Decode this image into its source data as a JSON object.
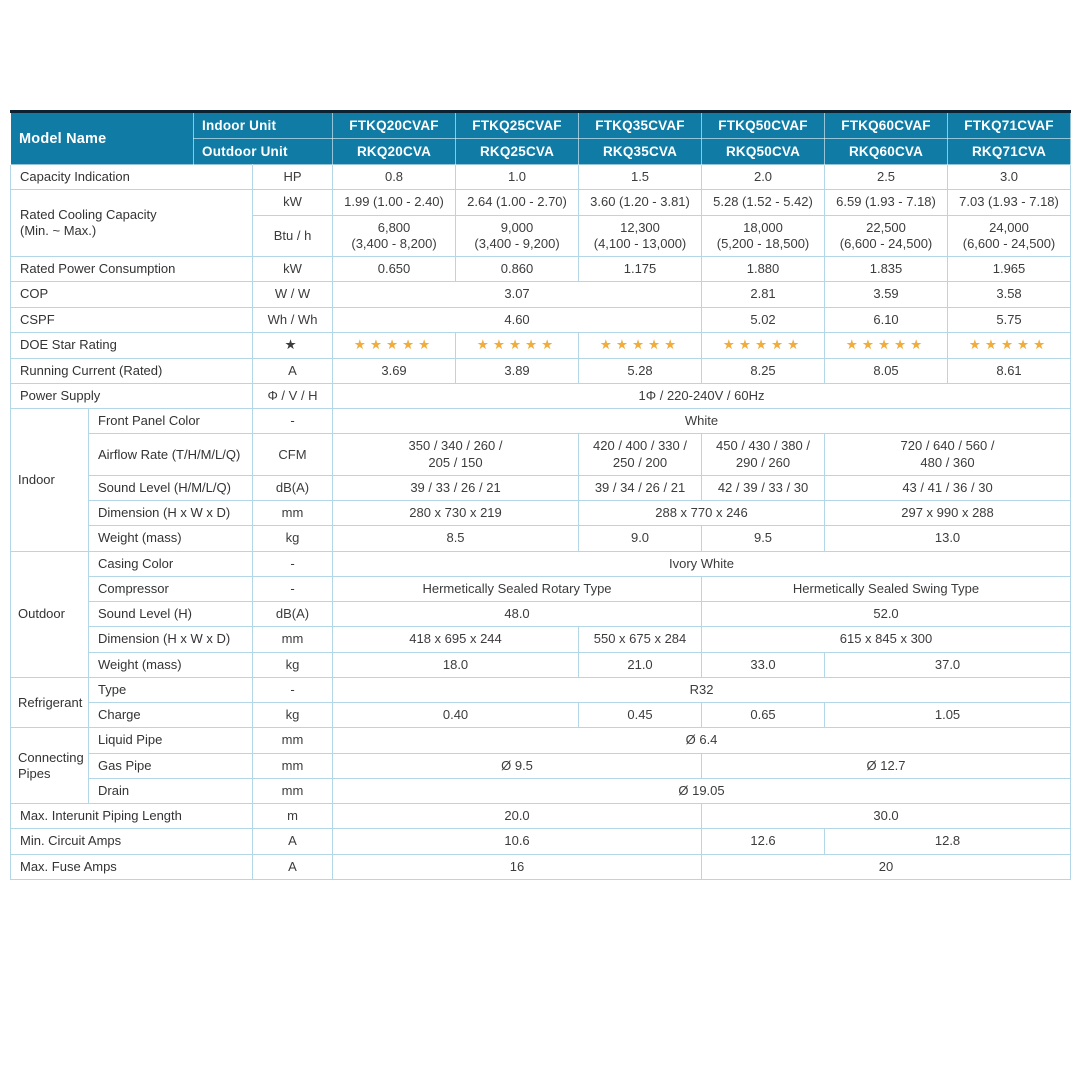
{
  "table": {
    "star_symbol": "★",
    "colors": {
      "header_bg": "#107ca6",
      "border": "#b3d7e6",
      "star": "#f0ad3d",
      "top_rule": "#0d2230"
    },
    "header": {
      "model_name": "Model Name",
      "indoor_label": "Indoor Unit",
      "outdoor_label": "Outdoor Unit",
      "indoor_models": [
        "FTKQ20CVAF",
        "FTKQ25CVAF",
        "FTKQ35CVAF",
        "FTKQ50CVAF",
        "FTKQ60CVAF",
        "FTKQ71CVAF"
      ],
      "outdoor_models": [
        "RKQ20CVA",
        "RKQ25CVA",
        "RKQ35CVA",
        "RKQ50CVA",
        "RKQ60CVA",
        "RKQ71CVA"
      ]
    },
    "rows": [
      {
        "label": "Capacity Indication",
        "unit": "HP",
        "cells": [
          {
            "t": "0.8",
            "s": 1
          },
          {
            "t": "1.0",
            "s": 1
          },
          {
            "t": "1.5",
            "s": 1
          },
          {
            "t": "2.0",
            "s": 1
          },
          {
            "t": "2.5",
            "s": 1
          },
          {
            "t": "3.0",
            "s": 1
          }
        ]
      },
      {
        "label": "Rated Cooling Capacity\n(Min. ~ Max.)",
        "label_rowspan": 2,
        "unit": "kW",
        "cells": [
          {
            "t": "1.99 (1.00 - 2.40)",
            "s": 1
          },
          {
            "t": "2.64 (1.00 - 2.70)",
            "s": 1
          },
          {
            "t": "3.60 (1.20 - 3.81)",
            "s": 1
          },
          {
            "t": "5.28 (1.52 - 5.42)",
            "s": 1
          },
          {
            "t": "6.59 (1.93 - 7.18)",
            "s": 1
          },
          {
            "t": "7.03 (1.93 - 7.18)",
            "s": 1
          }
        ]
      },
      {
        "skip_label": true,
        "unit": "Btu / h",
        "cells": [
          {
            "t": "6,800\n(3,400 - 8,200)",
            "s": 1
          },
          {
            "t": "9,000\n(3,400 - 9,200)",
            "s": 1
          },
          {
            "t": "12,300\n(4,100 - 13,000)",
            "s": 1
          },
          {
            "t": "18,000\n(5,200 - 18,500)",
            "s": 1
          },
          {
            "t": "22,500\n(6,600 - 24,500)",
            "s": 1
          },
          {
            "t": "24,000\n(6,600 - 24,500)",
            "s": 1
          }
        ]
      },
      {
        "label": "Rated Power Consumption",
        "unit": "kW",
        "cells": [
          {
            "t": "0.650",
            "s": 1
          },
          {
            "t": "0.860",
            "s": 1
          },
          {
            "t": "1.175",
            "s": 1
          },
          {
            "t": "1.880",
            "s": 1
          },
          {
            "t": "1.835",
            "s": 1
          },
          {
            "t": "1.965",
            "s": 1
          }
        ]
      },
      {
        "label": "COP",
        "unit": "W / W",
        "cells": [
          {
            "t": "3.07",
            "s": 3
          },
          {
            "t": "2.81",
            "s": 1
          },
          {
            "t": "3.59",
            "s": 1
          },
          {
            "t": "3.58",
            "s": 1
          }
        ]
      },
      {
        "label": "CSPF",
        "unit": "Wh / Wh",
        "cells": [
          {
            "t": "4.60",
            "s": 3
          },
          {
            "t": "5.02",
            "s": 1
          },
          {
            "t": "6.10",
            "s": 1
          },
          {
            "t": "5.75",
            "s": 1
          }
        ]
      },
      {
        "label": "DOE Star Rating",
        "unit": "★",
        "star_unit": true,
        "cells": [
          {
            "stars": 5,
            "s": 1
          },
          {
            "stars": 5,
            "s": 1
          },
          {
            "stars": 5,
            "s": 1
          },
          {
            "stars": 5,
            "s": 1
          },
          {
            "stars": 5,
            "s": 1
          },
          {
            "stars": 5,
            "s": 1
          }
        ]
      },
      {
        "label": "Running Current (Rated)",
        "unit": "A",
        "cells": [
          {
            "t": "3.69",
            "s": 1
          },
          {
            "t": "3.89",
            "s": 1
          },
          {
            "t": "5.28",
            "s": 1
          },
          {
            "t": "8.25",
            "s": 1
          },
          {
            "t": "8.05",
            "s": 1
          },
          {
            "t": "8.61",
            "s": 1
          }
        ]
      },
      {
        "label": "Power Supply",
        "unit": "Φ / V / H",
        "cells": [
          {
            "t": "1Φ / 220-240V / 60Hz",
            "s": 6
          }
        ]
      },
      {
        "group": {
          "label": "Indoor",
          "rowspan": 5
        },
        "label": "Front Panel Color",
        "unit": "-",
        "cells": [
          {
            "t": "White",
            "s": 6
          }
        ]
      },
      {
        "in_group": true,
        "label": "Airflow Rate (T/H/M/L/Q)",
        "unit": "CFM",
        "cells": [
          {
            "t": "350 / 340 / 260 /\n205 / 150",
            "s": 2
          },
          {
            "t": "420 / 400 / 330 /\n250 / 200",
            "s": 1
          },
          {
            "t": "450 / 430 / 380 /\n290 / 260",
            "s": 1
          },
          {
            "t": "720 / 640 / 560 /\n480 / 360",
            "s": 2
          }
        ]
      },
      {
        "in_group": true,
        "label": "Sound Level (H/M/L/Q)",
        "unit": "dB(A)",
        "cells": [
          {
            "t": "39 / 33 / 26 / 21",
            "s": 2
          },
          {
            "t": "39 / 34 / 26 / 21",
            "s": 1
          },
          {
            "t": "42 / 39 / 33 / 30",
            "s": 1
          },
          {
            "t": "43 / 41 / 36 / 30",
            "s": 2
          }
        ]
      },
      {
        "in_group": true,
        "label": "Dimension (H x W x D)",
        "unit": "mm",
        "cells": [
          {
            "t": "280 x 730 x 219",
            "s": 2
          },
          {
            "t": "288 x 770 x 246",
            "s": 2
          },
          {
            "t": "297 x 990 x 288",
            "s": 2
          }
        ]
      },
      {
        "in_group": true,
        "label": "Weight (mass)",
        "unit": "kg",
        "cells": [
          {
            "t": "8.5",
            "s": 2
          },
          {
            "t": "9.0",
            "s": 1
          },
          {
            "t": "9.5",
            "s": 1
          },
          {
            "t": "13.0",
            "s": 2
          }
        ]
      },
      {
        "group": {
          "label": "Outdoor",
          "rowspan": 5
        },
        "label": "Casing Color",
        "unit": "-",
        "cells": [
          {
            "t": "Ivory White",
            "s": 6
          }
        ]
      },
      {
        "in_group": true,
        "label": "Compressor",
        "unit": "-",
        "cells": [
          {
            "t": "Hermetically Sealed Rotary Type",
            "s": 3
          },
          {
            "t": "Hermetically Sealed Swing Type",
            "s": 3
          }
        ]
      },
      {
        "in_group": true,
        "label": "Sound Level (H)",
        "unit": "dB(A)",
        "cells": [
          {
            "t": "48.0",
            "s": 3
          },
          {
            "t": "52.0",
            "s": 3
          }
        ]
      },
      {
        "in_group": true,
        "label": "Dimension (H x W x D)",
        "unit": "mm",
        "cells": [
          {
            "t": "418 x 695 x 244",
            "s": 2
          },
          {
            "t": "550 x 675 x 284",
            "s": 1
          },
          {
            "t": "615 x 845 x 300",
            "s": 3
          }
        ]
      },
      {
        "in_group": true,
        "label": "Weight (mass)",
        "unit": "kg",
        "cells": [
          {
            "t": "18.0",
            "s": 2
          },
          {
            "t": "21.0",
            "s": 1
          },
          {
            "t": "33.0",
            "s": 1
          },
          {
            "t": "37.0",
            "s": 2
          }
        ]
      },
      {
        "group": {
          "label": "Refrigerant",
          "rowspan": 2
        },
        "label": "Type",
        "unit": "-",
        "cells": [
          {
            "t": "R32",
            "s": 6
          }
        ]
      },
      {
        "in_group": true,
        "label": "Charge",
        "unit": "kg",
        "cells": [
          {
            "t": "0.40",
            "s": 2
          },
          {
            "t": "0.45",
            "s": 1
          },
          {
            "t": "0.65",
            "s": 1
          },
          {
            "t": "1.05",
            "s": 2
          }
        ]
      },
      {
        "group": {
          "label": "Connecting Pipes",
          "rowspan": 3
        },
        "label": "Liquid Pipe",
        "unit": "mm",
        "cells": [
          {
            "t": "Ø 6.4",
            "s": 6
          }
        ]
      },
      {
        "in_group": true,
        "label": "Gas Pipe",
        "unit": "mm",
        "cells": [
          {
            "t": "Ø 9.5",
            "s": 3
          },
          {
            "t": "Ø 12.7",
            "s": 3
          }
        ]
      },
      {
        "in_group": true,
        "label": "Drain",
        "unit": "mm",
        "cells": [
          {
            "t": "Ø 19.05",
            "s": 6
          }
        ]
      },
      {
        "label": "Max. Interunit Piping Length",
        "unit": "m",
        "cells": [
          {
            "t": "20.0",
            "s": 3
          },
          {
            "t": "30.0",
            "s": 3
          }
        ]
      },
      {
        "label": "Min. Circuit Amps",
        "unit": "A",
        "cells": [
          {
            "t": "10.6",
            "s": 3
          },
          {
            "t": "12.6",
            "s": 1
          },
          {
            "t": "12.8",
            "s": 2
          }
        ]
      },
      {
        "label": "Max. Fuse Amps",
        "unit": "A",
        "cells": [
          {
            "t": "16",
            "s": 3
          },
          {
            "t": "20",
            "s": 3
          }
        ]
      }
    ]
  }
}
